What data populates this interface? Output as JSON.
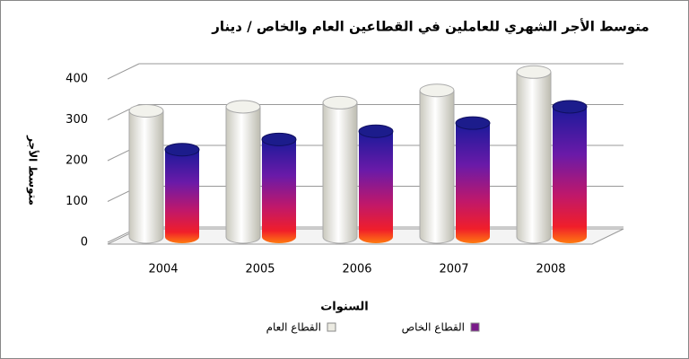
{
  "chart_data": {
    "type": "bar3d",
    "title": "متوسط الأجر الشهري للعاملين في القطاعين العام والخاص / دينار",
    "y_label": "متوسط الأجر",
    "x_label": "السنوات",
    "categories": [
      "2004",
      "2005",
      "2006",
      "2007",
      "2008"
    ],
    "series": [
      {
        "name": "القطاع العام",
        "color": "#ecebe2",
        "values": [
          300,
          310,
          320,
          350,
          395
        ]
      },
      {
        "name": "القطاع الخاص",
        "color": "#7a1a8a",
        "values": [
          205,
          230,
          250,
          270,
          310
        ]
      }
    ],
    "ylim": [
      0,
      400
    ],
    "yticks": [
      0,
      100,
      200,
      300,
      400
    ],
    "grid": true
  }
}
